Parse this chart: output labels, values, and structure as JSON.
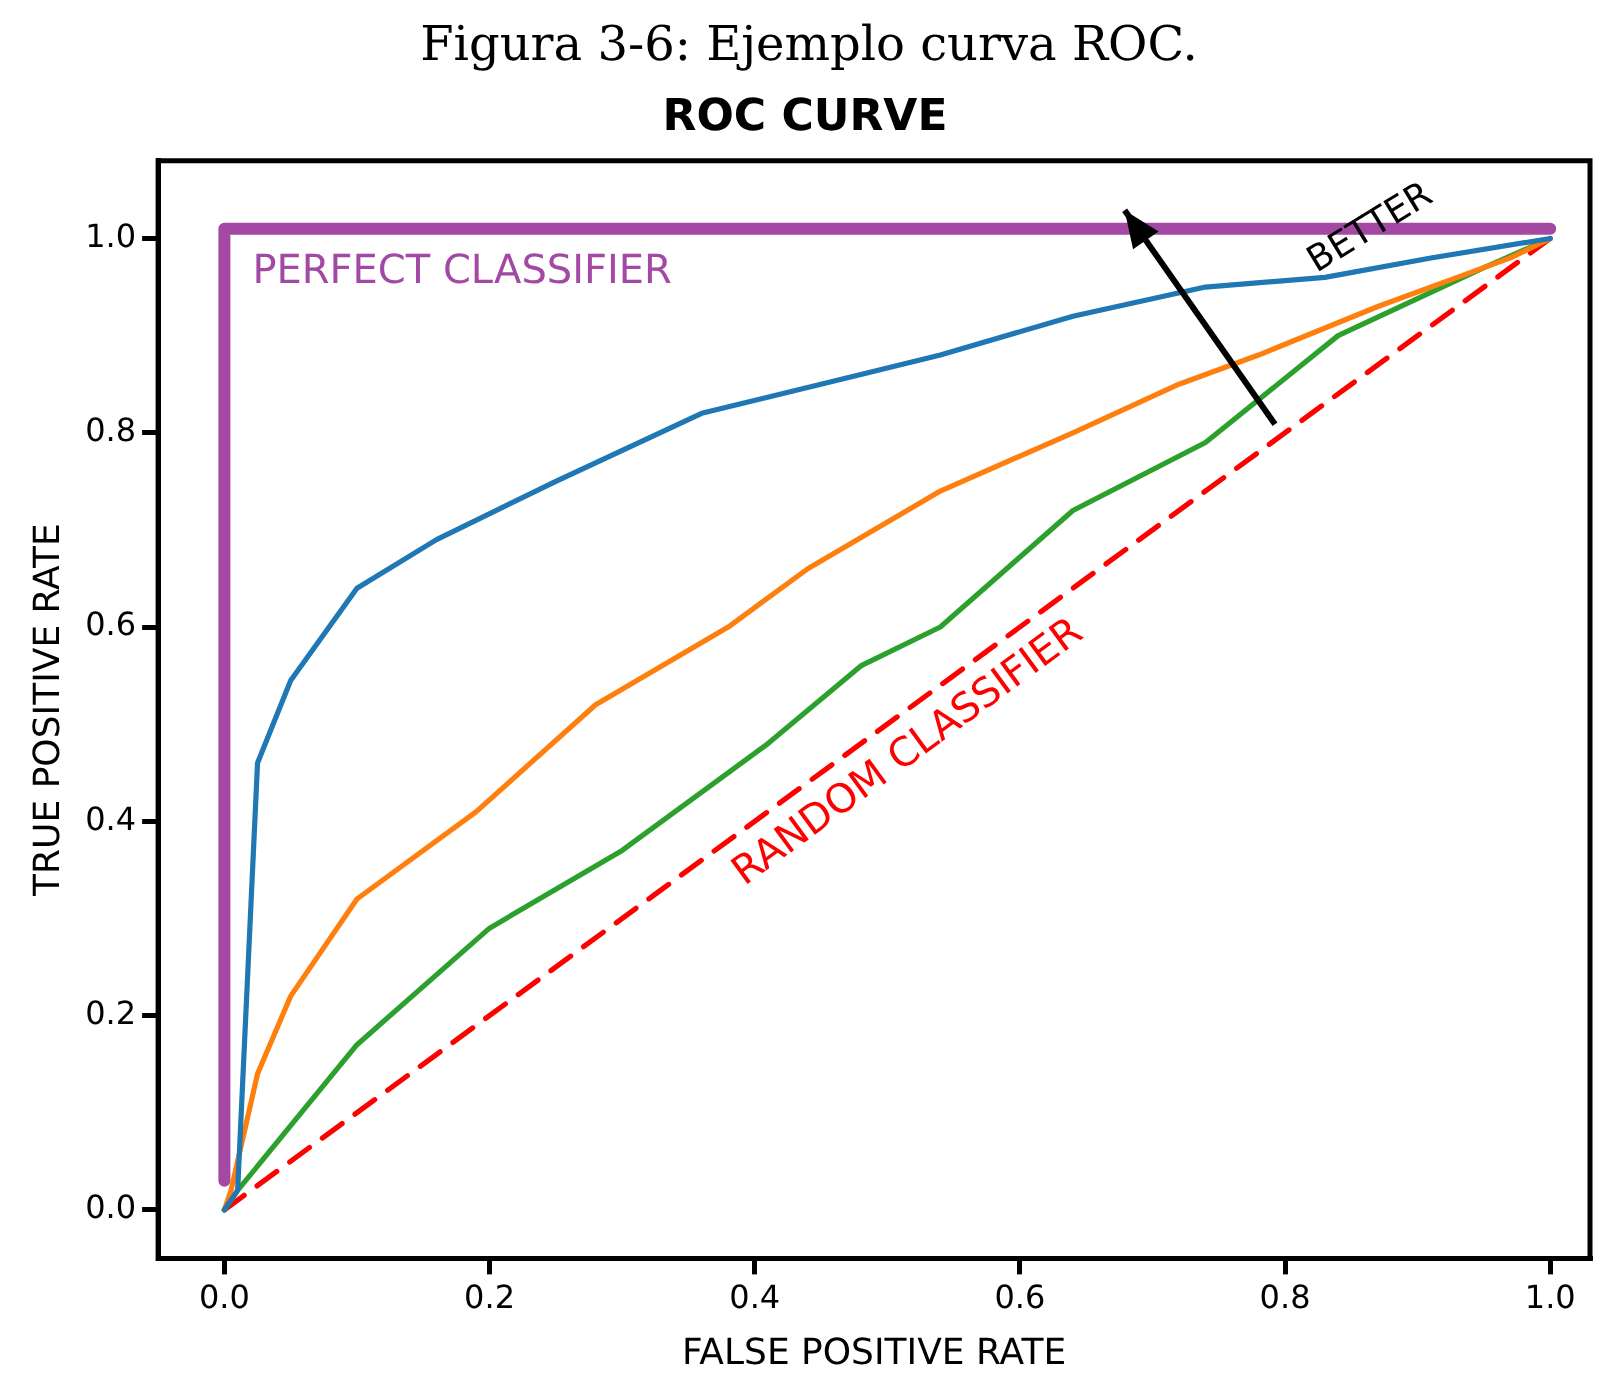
{
  "chart_data": {
    "type": "line",
    "title": "Figura 3-6: Ejemplo curva ROC.",
    "subtitle": "ROC CURVE",
    "xlabel": "FALSE POSITIVE RATE",
    "ylabel": "TRUE POSITIVE RATE",
    "xlim": [
      -0.05,
      1.03
    ],
    "ylim": [
      -0.05,
      1.08
    ],
    "xticks": [
      {
        "value": 0,
        "label": "0.0"
      },
      {
        "value": 0.2,
        "label": "0.2"
      },
      {
        "value": 0.4,
        "label": "0.4"
      },
      {
        "value": 0.6,
        "label": "0.6"
      },
      {
        "value": 0.8,
        "label": "0.8"
      },
      {
        "value": 1,
        "label": "1.0"
      }
    ],
    "yticks": [
      {
        "value": 0,
        "label": "0.0"
      },
      {
        "value": 0.2,
        "label": "0.2"
      },
      {
        "value": 0.4,
        "label": "0.4"
      },
      {
        "value": 0.6,
        "label": "0.6"
      },
      {
        "value": 0.8,
        "label": "0.8"
      },
      {
        "value": 1,
        "label": "1.0"
      }
    ],
    "grid": false,
    "legend": false,
    "marker": "none",
    "series": [
      {
        "name": "PERFECT CLASSIFIER",
        "color": "#a349a4",
        "x": [
          0,
          0,
          1
        ],
        "values": [
          0.03,
          1.01,
          1.01
        ]
      },
      {
        "color": "#1f77b4",
        "x": [
          0,
          0.01,
          0.025,
          0.05,
          0.1,
          0.16,
          0.25,
          0.36,
          0.48,
          0.54,
          0.64,
          0.74,
          0.83,
          0.91,
          1
        ],
        "values": [
          0,
          0.02,
          0.46,
          0.545,
          0.64,
          0.69,
          0.75,
          0.82,
          0.86,
          0.88,
          0.92,
          0.95,
          0.96,
          0.98,
          1
        ]
      },
      {
        "color": "#ff7f0e",
        "x": [
          0,
          0.005,
          0.025,
          0.05,
          0.1,
          0.19,
          0.28,
          0.38,
          0.44,
          0.54,
          0.64,
          0.72,
          0.78,
          0.87,
          0.97,
          1
        ],
        "values": [
          0,
          0.02,
          0.14,
          0.22,
          0.32,
          0.41,
          0.52,
          0.6,
          0.66,
          0.74,
          0.8,
          0.85,
          0.88,
          0.93,
          0.98,
          1
        ]
      },
      {
        "color": "#2ca02c",
        "x": [
          0,
          0.01,
          0.1,
          0.2,
          0.3,
          0.41,
          0.48,
          0.54,
          0.64,
          0.74,
          0.84,
          0.95,
          1
        ],
        "values": [
          0,
          0.02,
          0.17,
          0.29,
          0.37,
          0.48,
          0.56,
          0.6,
          0.72,
          0.79,
          0.9,
          0.97,
          1
        ]
      },
      {
        "name": "RANDOM CLASSIFIER",
        "color": "#ff0000",
        "line_style": "dashed",
        "x": [
          0,
          1
        ],
        "values": [
          0,
          1
        ]
      }
    ],
    "annotations": [
      "BETTER"
    ]
  }
}
